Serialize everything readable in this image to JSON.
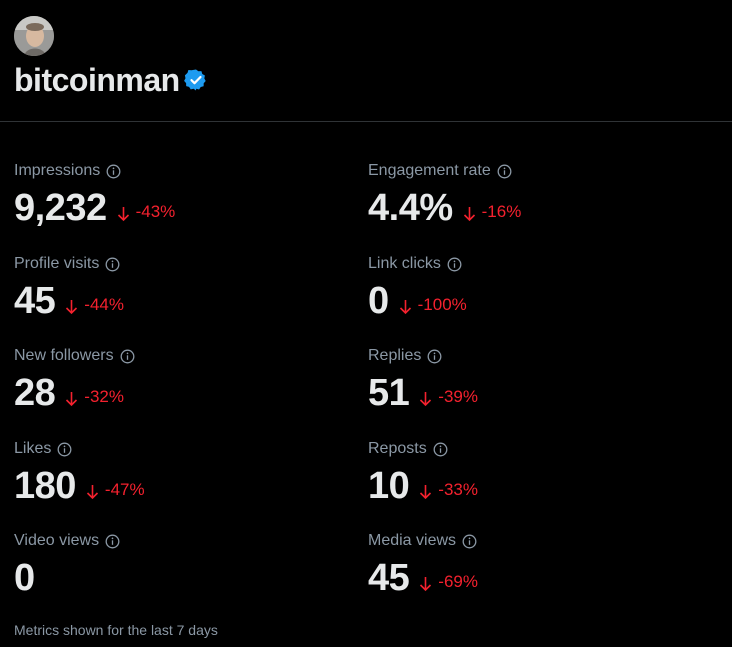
{
  "profile": {
    "avatar_icon": "user-avatar",
    "username": "bitcoinman",
    "verified_icon": "verified-badge-icon",
    "verified_color": "#1d9bf0"
  },
  "metrics": [
    {
      "label": "Impressions",
      "value": "9,232",
      "change": "-43%"
    },
    {
      "label": "Engagement rate",
      "value": "4.4%",
      "change": "-16%"
    },
    {
      "label": "Profile visits",
      "value": "45",
      "change": "-44%"
    },
    {
      "label": "Link clicks",
      "value": "0",
      "change": "-100%"
    },
    {
      "label": "New followers",
      "value": "28",
      "change": "-32%"
    },
    {
      "label": "Replies",
      "value": "51",
      "change": "-39%"
    },
    {
      "label": "Likes",
      "value": "180",
      "change": "-47%"
    },
    {
      "label": "Reposts",
      "value": "10",
      "change": "-33%"
    },
    {
      "label": "Video views",
      "value": "0",
      "change": ""
    },
    {
      "label": "Media views",
      "value": "45",
      "change": "-69%"
    }
  ],
  "footer": {
    "note": "Metrics shown for the last 7 days"
  },
  "colors": {
    "negative": "#f4212e",
    "muted": "#8b98a5",
    "text": "#e7e9ea"
  }
}
